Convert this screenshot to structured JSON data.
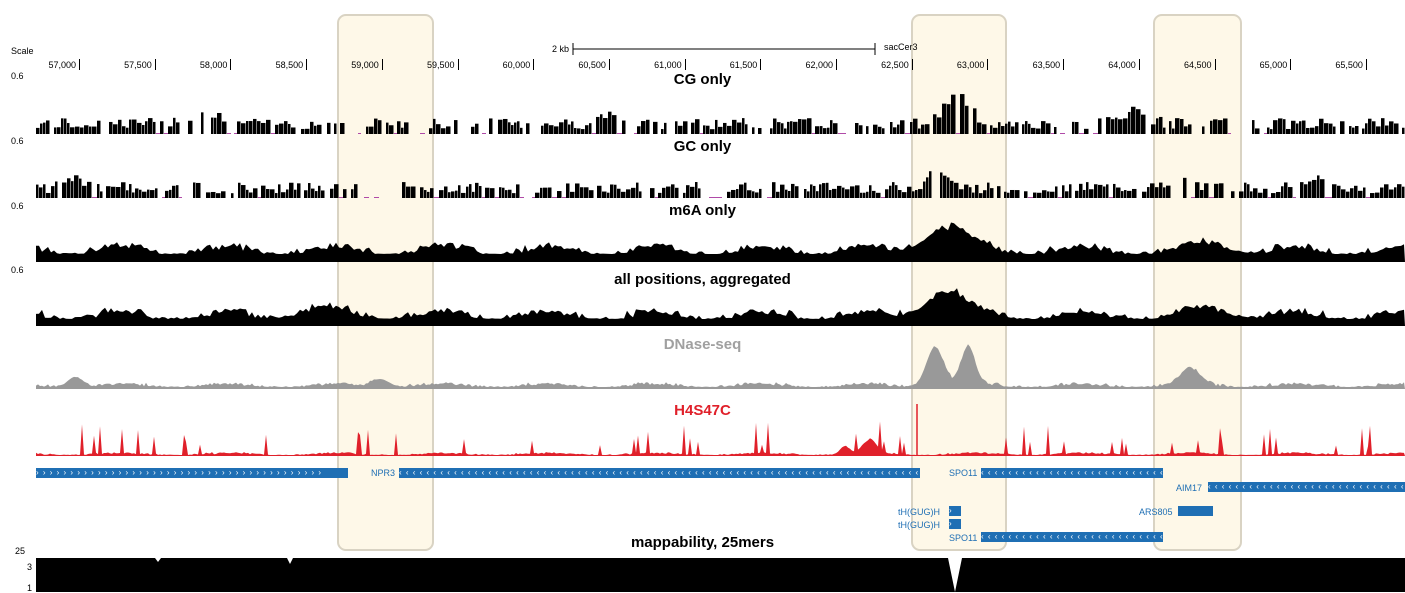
{
  "ruler": {
    "scale_label": "Scale",
    "span_label": "2 kb",
    "assembly": "sacCer3",
    "ticks": [
      "57,000",
      "57,500",
      "58,000",
      "58,500",
      "59,000",
      "59,500",
      "60,000",
      "60,500",
      "61,000",
      "61,500",
      "62,000",
      "62,500",
      "63,000",
      "63,500",
      "64,000",
      "64,500",
      "65,000",
      "65,500"
    ]
  },
  "tracks": {
    "cg": {
      "title": "CG only",
      "ymax": "0.6",
      "color": "#000000"
    },
    "gc": {
      "title": "GC only",
      "ymax": "0.6",
      "color": "#000000"
    },
    "m6a": {
      "title": "m6A only",
      "ymax": "0.6",
      "color": "#000000"
    },
    "all": {
      "title": "all positions, aggregated",
      "ymax": "0.6",
      "color": "#000000"
    },
    "dnase": {
      "title": "DNase-seq",
      "color": "#999999"
    },
    "h4s47c": {
      "title": "H4S47C",
      "color": "#e0202a"
    },
    "mappability": {
      "title": "mappability, 25mers",
      "ymax": "25",
      "mid": "3",
      "min": "1",
      "color": "#000000"
    }
  },
  "genes": {
    "color": "#1f6fb4",
    "npr3": "NPR3",
    "spo11": "SPO11",
    "aim17": "AIM17",
    "ars805": "ARS805",
    "trna1": "tH(GUG)H",
    "trna2": "tH(GUG)H",
    "spo11_b": "SPO11",
    "arrows_fwd": "› › › › › › › › › › › › › › › › › › › › › › › › › › › › › › › › › › › › › › › › › ›",
    "arrows_rev": "‹ ‹ ‹ ‹ ‹ ‹ ‹ ‹ ‹ ‹ ‹ ‹ ‹ ‹ ‹ ‹ ‹ ‹ ‹ ‹ ‹ ‹ ‹ ‹ ‹ ‹ ‹ ‹ ‹ ‹ ‹ ‹ ‹ ‹ ‹ ‹ ‹ ‹ ‹ ‹ ‹ ‹ ‹ ‹ ‹ ‹ ‹ ‹ ‹ ‹ ‹ ‹ ‹ ‹ ‹ ‹ ‹ ‹ ‹ ‹ ‹ ‹ ‹ ‹ ‹ ‹ ‹ ‹ ‹ ‹ ‹ ‹ ‹ ‹ ‹ ‹",
    "arrow_single": "›"
  },
  "highlight": {
    "fill": "#fdf2d6",
    "border": "#d9d3c3"
  }
}
